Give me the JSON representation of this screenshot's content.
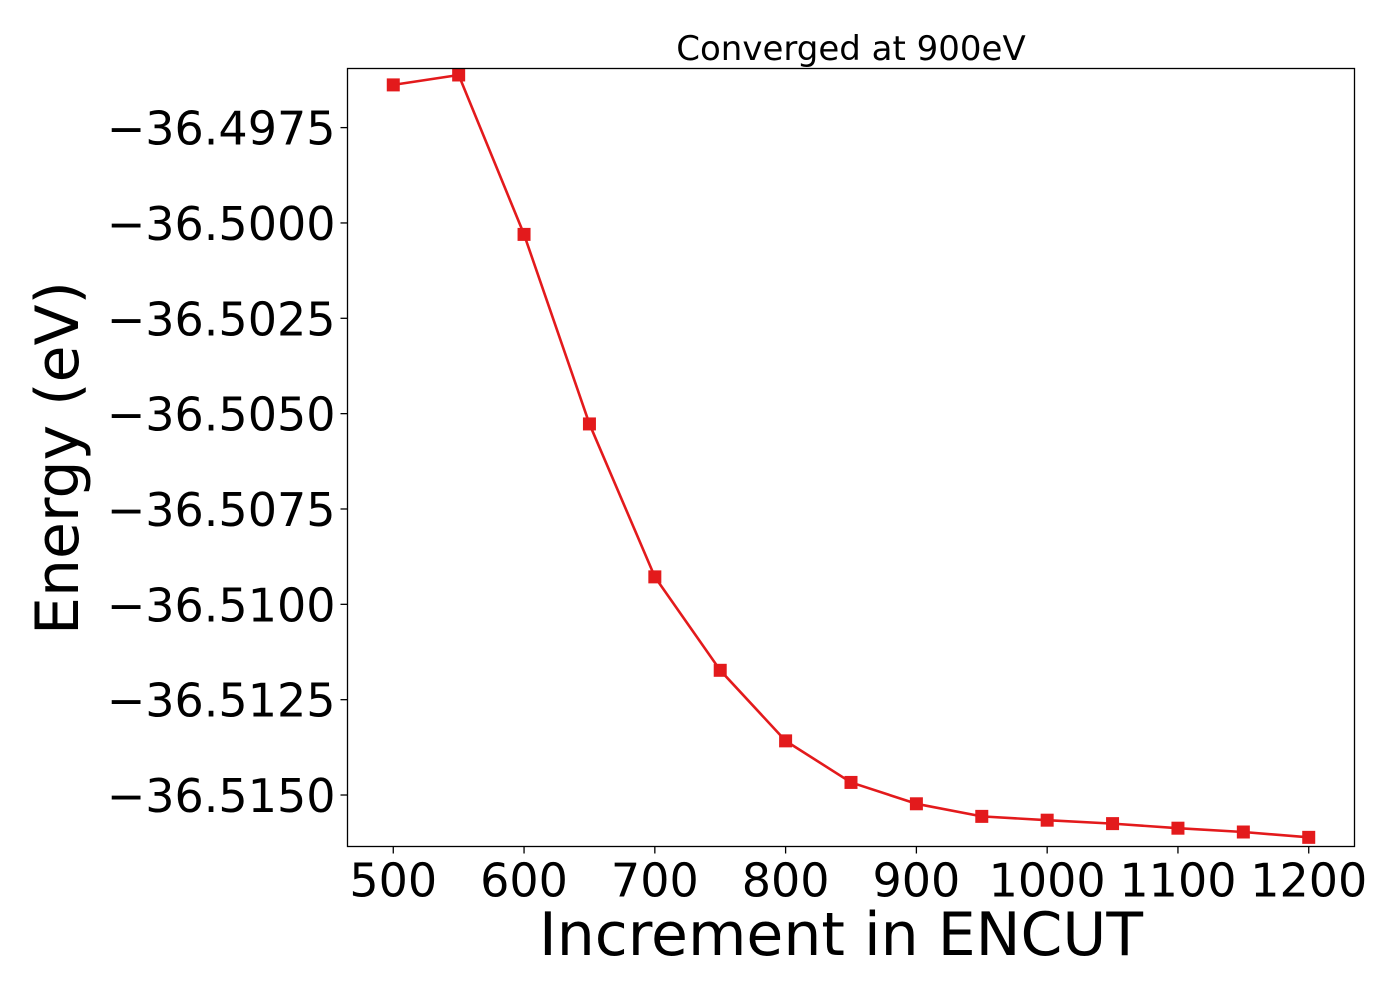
{
  "chart_data": {
    "type": "line",
    "title": "Converged at 900eV",
    "xlabel": "Increment in ENCUT",
    "ylabel": "Energy (eV)",
    "x": [
      500,
      550,
      600,
      650,
      700,
      750,
      800,
      850,
      900,
      950,
      1000,
      1050,
      1100,
      1150,
      1200
    ],
    "series": [
      {
        "values": [
          -36.49638,
          -36.49612,
          -36.5003,
          -36.50527,
          -36.50928,
          -36.51173,
          -36.51358,
          -36.51467,
          -36.51523,
          -36.51556,
          -36.51566,
          -36.51575,
          -36.51587,
          -36.51597,
          -36.51611
        ],
        "color": "#e31a1c",
        "marker": "square"
      }
    ],
    "xticks": [
      500,
      600,
      700,
      800,
      900,
      1000,
      1100,
      1200
    ],
    "xtick_labels": [
      "500",
      "600",
      "700",
      "800",
      "900",
      "1000",
      "1100",
      "1200"
    ],
    "yticks": [
      -36.4975,
      -36.5,
      -36.5025,
      -36.505,
      -36.5075,
      -36.51,
      -36.5125,
      -36.515
    ],
    "ytick_labels": [
      "−36.4975",
      "−36.5000",
      "−36.5025",
      "−36.5050",
      "−36.5075",
      "−36.5100",
      "−36.5125",
      "−36.5150"
    ],
    "xlim": [
      465,
      1235
    ],
    "ylim": [
      -36.51635,
      -36.49595
    ],
    "grid": false,
    "legend": "none"
  }
}
